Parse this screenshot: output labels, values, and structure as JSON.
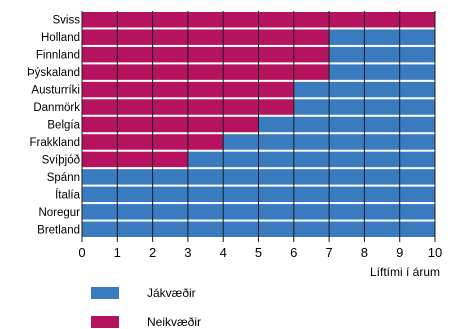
{
  "chart_data": {
    "type": "bar",
    "orientation": "horizontal",
    "stacked": true,
    "categories": [
      "Sviss",
      "Holland",
      "Finnland",
      "Þýskaland",
      "Austurríki",
      "Danmörk",
      "Belgía",
      "Frakkland",
      "Svíþjóð",
      "Spánn",
      "Ítalía",
      "Noregur",
      "Bretland"
    ],
    "series": [
      {
        "name": "Neikvæðir",
        "color": "#b5125f",
        "values": [
          10,
          7,
          7,
          7,
          6,
          6,
          5,
          4,
          3,
          0,
          0,
          0,
          0
        ]
      },
      {
        "name": "Jákvæðir",
        "color": "#3a7bc0",
        "values": [
          0,
          3,
          3,
          3,
          4,
          4,
          5,
          6,
          7,
          10,
          10,
          10,
          10
        ]
      }
    ],
    "xlim": [
      0,
      10
    ],
    "xticks": [
      "0",
      "1",
      "2",
      "3",
      "4",
      "5",
      "6",
      "7",
      "8",
      "9",
      "10"
    ],
    "xlabel": "Líftími í árum",
    "ylabel": "",
    "title": "",
    "grid": "vertical",
    "legend": {
      "position": "bottom-left",
      "order": [
        "Jákvæðir",
        "Neikvæðir"
      ]
    }
  }
}
